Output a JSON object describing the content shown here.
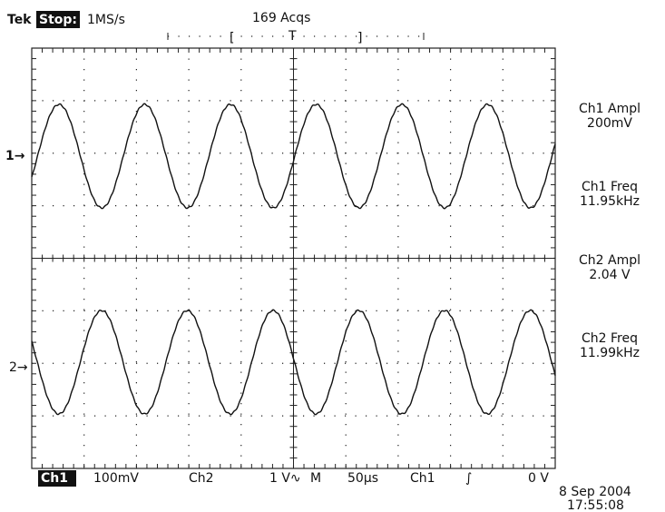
{
  "header": {
    "brand": "Tek",
    "status": "Stop:",
    "sample_rate": "1MS/s",
    "acquisitions": "169 Acqs",
    "bracket_left": "[",
    "trigger_marker": "T",
    "bracket_right": "]"
  },
  "channel_markers": [
    "1→",
    "2→"
  ],
  "measurements": [
    {
      "label": "Ch1 Ampl",
      "value": "200mV"
    },
    {
      "label": "Ch1 Freq",
      "value": "11.95kHz"
    },
    {
      "label": "Ch2 Ampl",
      "value": "2.04 V"
    },
    {
      "label": "Ch2 Freq",
      "value": "11.99kHz"
    }
  ],
  "footer": {
    "ch1": "Ch1",
    "ch1_scale": "100mV",
    "ch2": "Ch2",
    "ch2_scale": "1 V∿",
    "timebase_label": "M",
    "timebase": "50µs",
    "trigger_source": "Ch1",
    "trigger_slope": "∫",
    "trigger_level": "0 V"
  },
  "timestamp": {
    "date": "8 Sep 2004",
    "time": "17:55:08"
  }
}
